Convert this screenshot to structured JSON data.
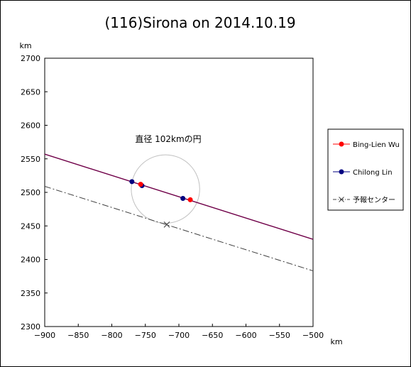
{
  "chart_data": {
    "type": "scatter",
    "title": "(116)Sirona on 2014.10.19",
    "xlabel": "km",
    "ylabel": "km",
    "xlim": [
      -900,
      -500
    ],
    "ylim": [
      2300,
      2700
    ],
    "x_ticks": [
      -900,
      -850,
      -800,
      -750,
      -700,
      -650,
      -600,
      -550,
      -500
    ],
    "y_ticks": [
      2300,
      2350,
      2400,
      2450,
      2500,
      2550,
      2600,
      2650,
      2700
    ],
    "x_tick_labels": [
      "−900",
      "−850",
      "−800",
      "−750",
      "−700",
      "−650",
      "−600",
      "−550",
      "−500"
    ],
    "y_tick_labels": [
      "2300",
      "2350",
      "2400",
      "2450",
      "2500",
      "2550",
      "2600",
      "2650",
      "2700"
    ],
    "grid": false,
    "legend_position": "right",
    "annotation": "直径 102kmの円",
    "circle": {
      "center": [
        -720,
        2505
      ],
      "diameter_km": 102,
      "color": "#c0c0c0"
    },
    "series": [
      {
        "name": "Bing-Lien Wu",
        "color": "#ff0000",
        "line_color": "#ff0000",
        "points": [
          [
            -757,
            2512
          ],
          [
            -683,
            2489
          ]
        ],
        "chord_line": [
          [
            -900,
            2557
          ],
          [
            -500,
            2430
          ]
        ]
      },
      {
        "name": "Chilong Lin",
        "color": "#000080",
        "line_color": "#000080",
        "points": [
          [
            -770,
            2516
          ],
          [
            -755,
            2510
          ],
          [
            -694,
            2491
          ]
        ],
        "chord_line": [
          [
            -900,
            2557
          ],
          [
            -500,
            2430
          ]
        ]
      },
      {
        "name": "予報センター",
        "color": "#404040",
        "line_style": "dash-dot",
        "marker": "x",
        "points": [
          [
            -718,
            2452
          ]
        ],
        "line": [
          [
            -900,
            2509
          ],
          [
            -500,
            2383
          ]
        ]
      }
    ]
  }
}
